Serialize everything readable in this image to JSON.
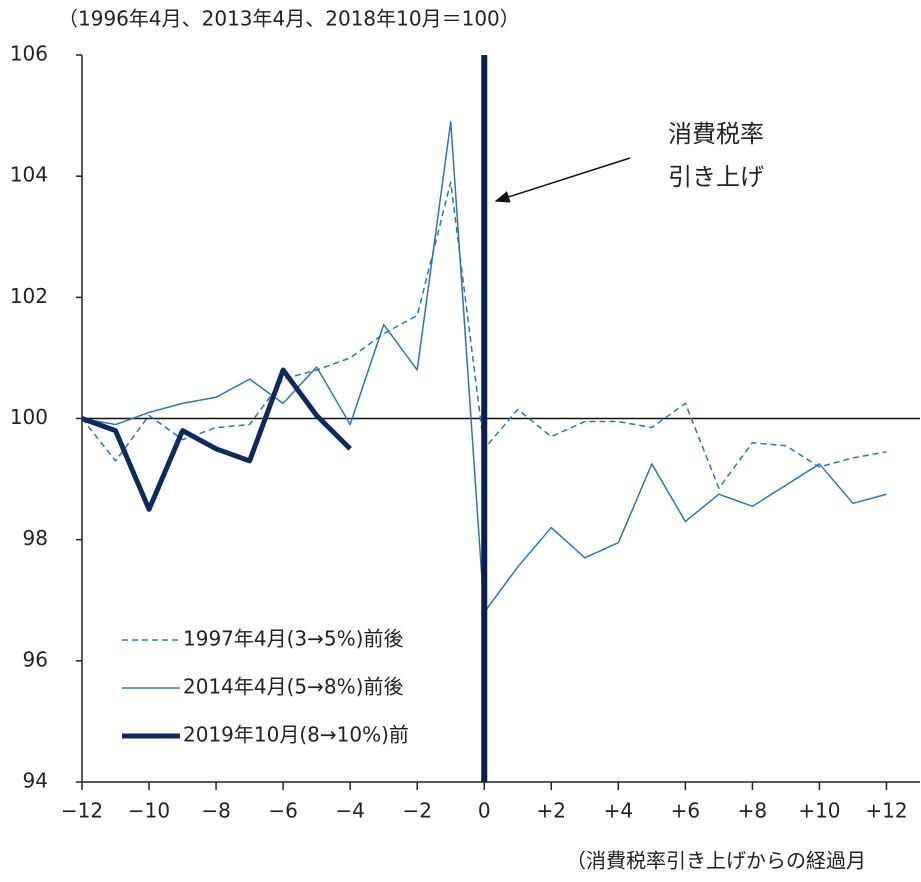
{
  "chart_data": {
    "type": "line",
    "title": "（1996年4月、2013年4月、2018年10月＝100）",
    "x_label": "（消費税率引き上げからの経過月",
    "annotation": [
      "消費税率",
      "引き上げ"
    ],
    "x": [
      -12,
      -11,
      -10,
      -9,
      -8,
      -7,
      -6,
      -5,
      -4,
      -3,
      -2,
      -1,
      0,
      1,
      2,
      3,
      4,
      5,
      6,
      7,
      8,
      9,
      10,
      11,
      12
    ],
    "series": [
      {
        "name": "1997年4月(3→5%)前後",
        "color": "#2e75b6",
        "style": "dashed",
        "width": 1.5,
        "values": [
          100,
          99.3,
          100.05,
          99.65,
          99.85,
          99.9,
          100.65,
          100.8,
          101.0,
          101.4,
          101.7,
          103.9,
          99.5,
          100.15,
          99.7,
          99.95,
          99.95,
          99.85,
          100.25,
          98.85,
          99.6,
          99.55,
          99.2,
          99.35,
          99.45
        ]
      },
      {
        "name": "2014年4月(5→8%)前後",
        "color": "#2e75b6",
        "style": "solid",
        "width": 1.5,
        "values": [
          100,
          99.9,
          100.1,
          100.25,
          100.35,
          100.65,
          100.25,
          100.85,
          99.9,
          101.55,
          100.8,
          104.9,
          96.8,
          97.55,
          98.2,
          97.7,
          97.95,
          99.25,
          98.3,
          98.75,
          98.55,
          98.9,
          99.25,
          98.6,
          98.75
        ]
      },
      {
        "name": "2019年10月(8→10%)前",
        "color": "#0e2a5c",
        "style": "solid",
        "width": 5,
        "values": [
          100,
          99.8,
          98.5,
          99.8,
          99.5,
          99.3,
          100.8,
          100.05,
          99.5,
          null,
          null,
          null,
          null,
          null,
          null,
          null,
          null,
          null,
          null,
          null,
          null,
          null,
          null,
          null,
          null
        ]
      }
    ],
    "reference_lines": {
      "x": 0,
      "y": 100
    },
    "xlim": [
      -12,
      13
    ],
    "ylim": [
      94,
      106
    ],
    "xticks": [
      {
        "value": -12,
        "label": "−12"
      },
      {
        "value": -10,
        "label": "−10"
      },
      {
        "value": -8,
        "label": "−8"
      },
      {
        "value": -6,
        "label": "−6"
      },
      {
        "value": -4,
        "label": "−4"
      },
      {
        "value": -2,
        "label": "−2"
      },
      0,
      {
        "value": 2,
        "label": "+2"
      },
      {
        "value": 4,
        "label": "+4"
      },
      {
        "value": 6,
        "label": "+6"
      },
      {
        "value": 8,
        "label": "+8"
      },
      {
        "value": 10,
        "label": "+10"
      },
      {
        "value": 12,
        "label": "+12"
      }
    ],
    "yticks": [
      94,
      96,
      98,
      100,
      102,
      104,
      106
    ],
    "legend": "lower left"
  }
}
